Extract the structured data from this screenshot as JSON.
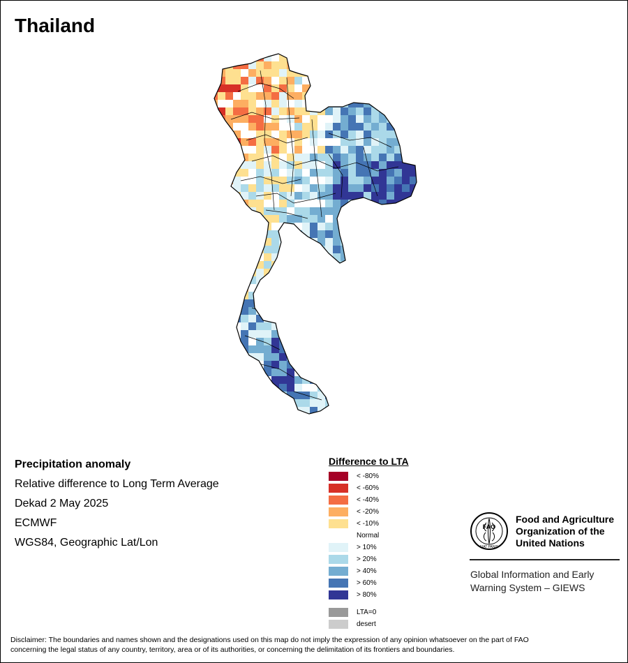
{
  "map": {
    "title": "Thailand"
  },
  "info": {
    "line1": "Precipitation anomaly",
    "line2": "Relative difference to Long Term Average",
    "line3": "Dekad 2 May 2025",
    "line4": "ECMWF",
    "line5": "WGS84, Geographic Lat/Lon"
  },
  "legend": {
    "title": "Difference to LTA",
    "items": [
      {
        "label": "< -80%",
        "color": "#a50026"
      },
      {
        "label": "< -60%",
        "color": "#d73027"
      },
      {
        "label": "< -40%",
        "color": "#f46d43"
      },
      {
        "label": "< -20%",
        "color": "#fdae61"
      },
      {
        "label": "< -10%",
        "color": "#fee090"
      },
      {
        "label": "Normal",
        "color": "#ffffff"
      },
      {
        "label": "> 10%",
        "color": "#e0f3f8"
      },
      {
        "label": "> 20%",
        "color": "#abd9e9"
      },
      {
        "label": "> 40%",
        "color": "#74add1"
      },
      {
        "label": "> 60%",
        "color": "#4575b4"
      },
      {
        "label": "> 80%",
        "color": "#313695"
      }
    ],
    "extra": [
      {
        "label": "LTA=0",
        "color": "#999999"
      },
      {
        "label": "desert",
        "color": "#cccccc"
      }
    ]
  },
  "fao": {
    "name_line1": "Food and Agriculture",
    "name_line2": "Organization of the",
    "name_line3": "United Nations",
    "logo_text": "FAO",
    "logo_motto": "FIAT PANIS",
    "giews_line1": "Global Information and Early",
    "giews_line2": "Warning System – GIEWS"
  },
  "disclaimer": {
    "line1": "Disclaimer: The boundaries and names shown and the designations used on this map do not imply the expression of any opinion whatsoever on the part of FAO",
    "line2": "concerning the legal status of any country, territory, area or of its authorities, or concerning the delimitation of its frontiers and boundaries."
  }
}
